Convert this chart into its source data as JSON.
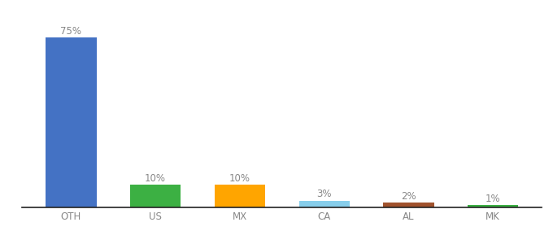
{
  "categories": [
    "OTH",
    "US",
    "MX",
    "CA",
    "AL",
    "MK"
  ],
  "values": [
    75,
    10,
    10,
    3,
    2,
    1
  ],
  "labels": [
    "75%",
    "10%",
    "10%",
    "3%",
    "2%",
    "1%"
  ],
  "bar_colors": [
    "#4472C4",
    "#3CB043",
    "#FFA500",
    "#87CEEB",
    "#A0522D",
    "#3CB043"
  ],
  "ylim": [
    0,
    83
  ],
  "background_color": "#ffffff",
  "label_color": "#888888",
  "label_fontsize": 8.5,
  "tick_fontsize": 8.5,
  "bar_width": 0.6
}
